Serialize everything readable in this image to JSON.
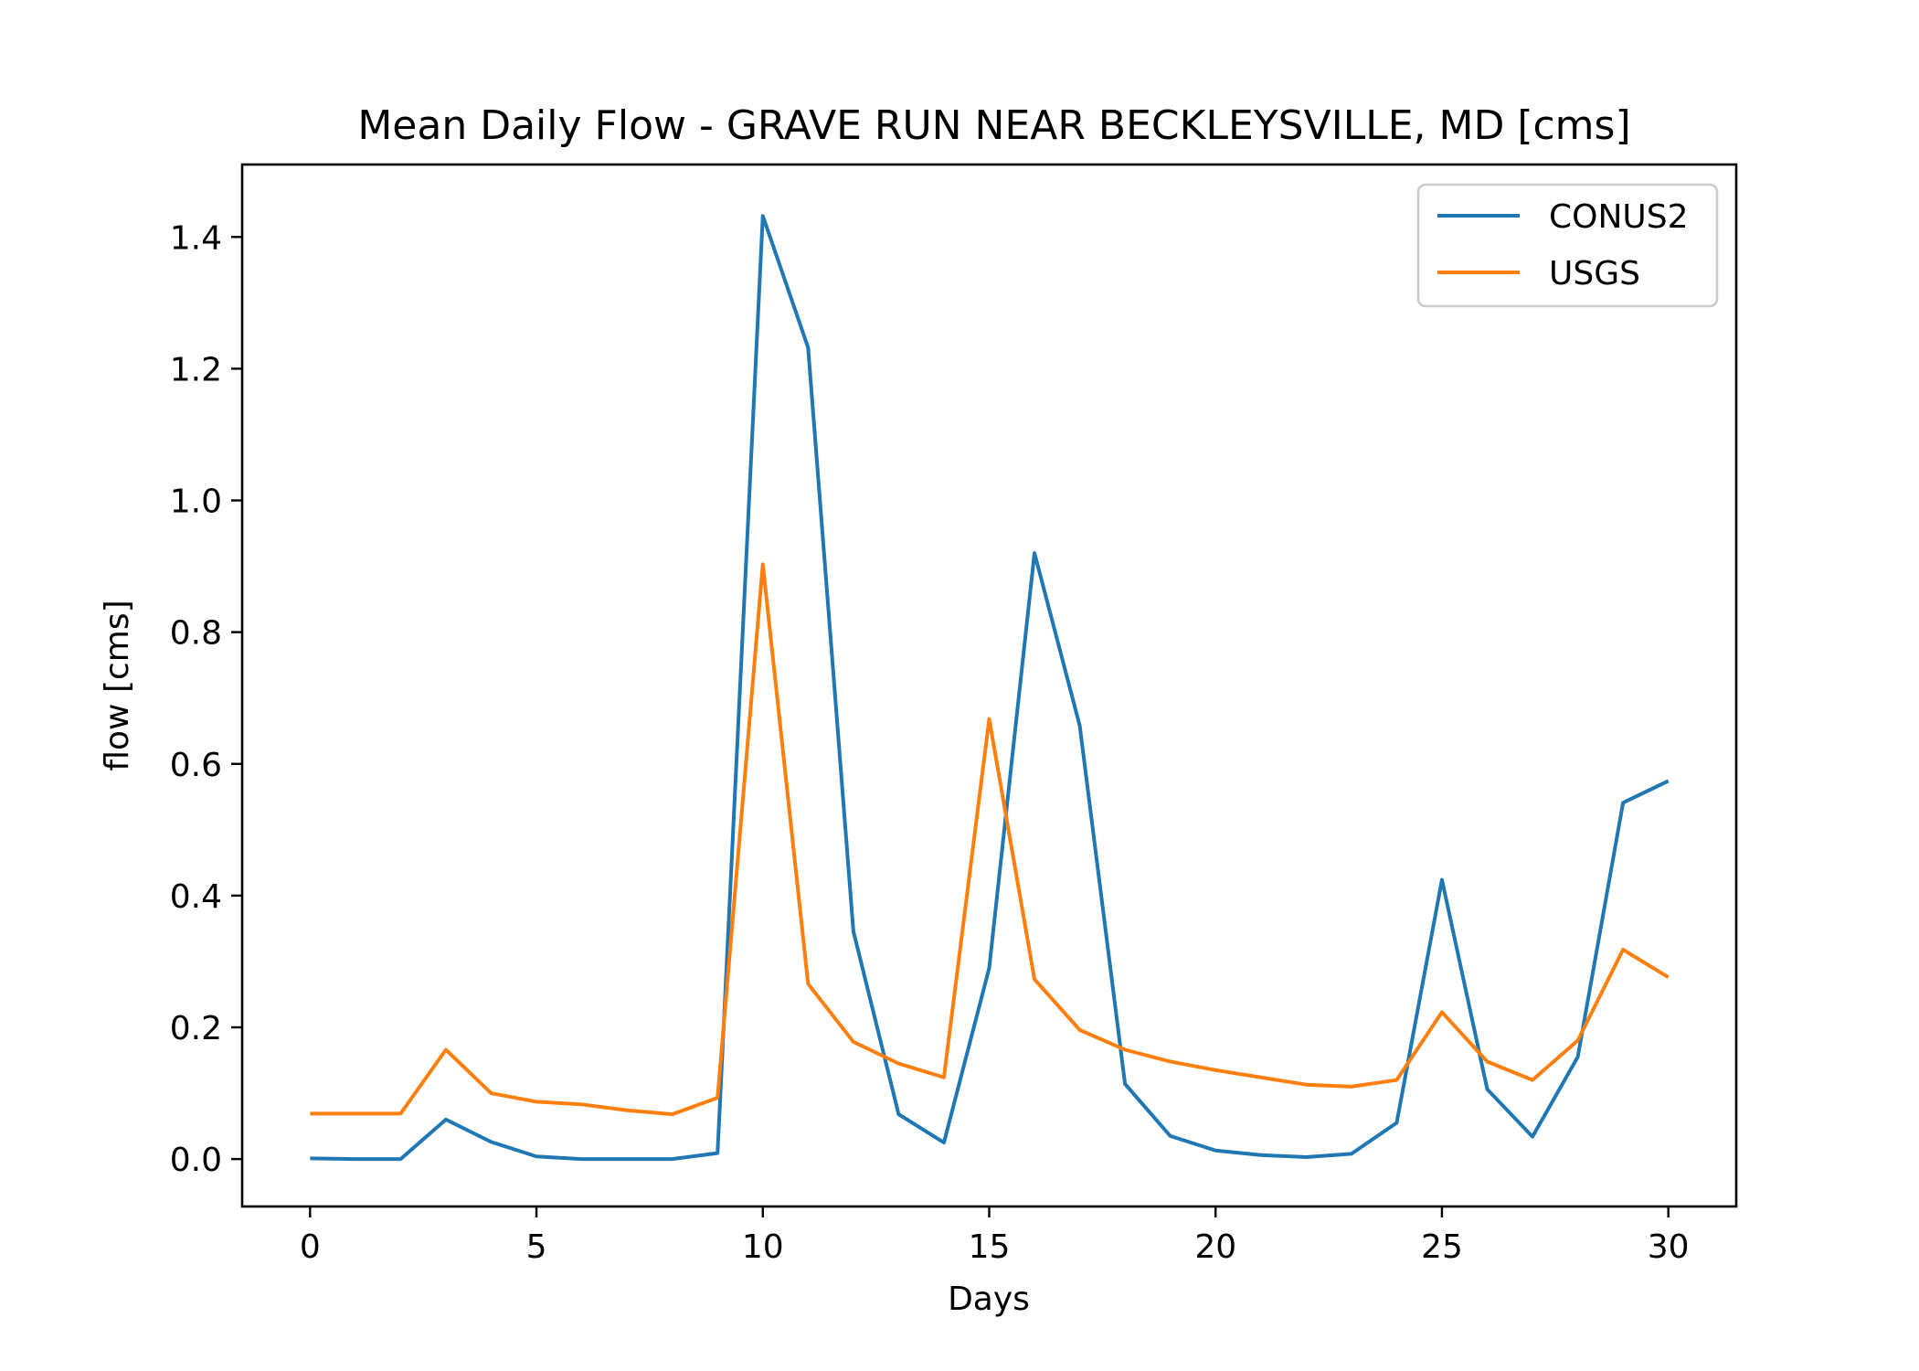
{
  "chart_data": {
    "type": "line",
    "title": "Mean Daily Flow - GRAVE RUN NEAR BECKLEYSVILLE, MD [cms]",
    "xlabel": "Days",
    "ylabel": "flow [cms]",
    "xlim": [
      -1.5,
      31.5
    ],
    "ylim": [
      -0.072,
      1.51
    ],
    "xticks": [
      0,
      5,
      10,
      15,
      20,
      25,
      30
    ],
    "xtick_labels": [
      "0",
      "5",
      "10",
      "15",
      "20",
      "25",
      "30"
    ],
    "yticks": [
      0.0,
      0.2,
      0.4,
      0.6,
      0.8,
      1.0,
      1.2,
      1.4
    ],
    "ytick_labels": [
      "0.0",
      "0.2",
      "0.4",
      "0.6",
      "0.8",
      "1.0",
      "1.2",
      "1.4"
    ],
    "grid": false,
    "legend": {
      "position": "top-right"
    },
    "x": [
      0,
      1,
      2,
      3,
      4,
      5,
      6,
      7,
      8,
      9,
      10,
      11,
      12,
      13,
      14,
      15,
      16,
      17,
      18,
      19,
      20,
      21,
      22,
      23,
      24,
      25,
      26,
      27,
      28,
      29,
      30
    ],
    "series": [
      {
        "name": "CONUS2",
        "color": "#1f77b4",
        "values": [
          0.001,
          0.0,
          0.0,
          0.06,
          0.026,
          0.004,
          0.0,
          0.0,
          0.0,
          0.009,
          1.432,
          1.232,
          0.346,
          0.068,
          0.025,
          0.29,
          0.92,
          0.658,
          0.114,
          0.035,
          0.013,
          0.006,
          0.003,
          0.008,
          0.055,
          0.424,
          0.106,
          0.034,
          0.155,
          0.541,
          0.574
        ]
      },
      {
        "name": "USGS",
        "color": "#ff7f0e",
        "values": [
          0.069,
          0.069,
          0.069,
          0.166,
          0.1,
          0.087,
          0.083,
          0.074,
          0.068,
          0.093,
          0.903,
          0.266,
          0.178,
          0.145,
          0.124,
          0.668,
          0.273,
          0.196,
          0.166,
          0.148,
          0.135,
          0.124,
          0.113,
          0.11,
          0.12,
          0.223,
          0.148,
          0.12,
          0.18,
          0.318,
          0.276
        ]
      }
    ]
  }
}
